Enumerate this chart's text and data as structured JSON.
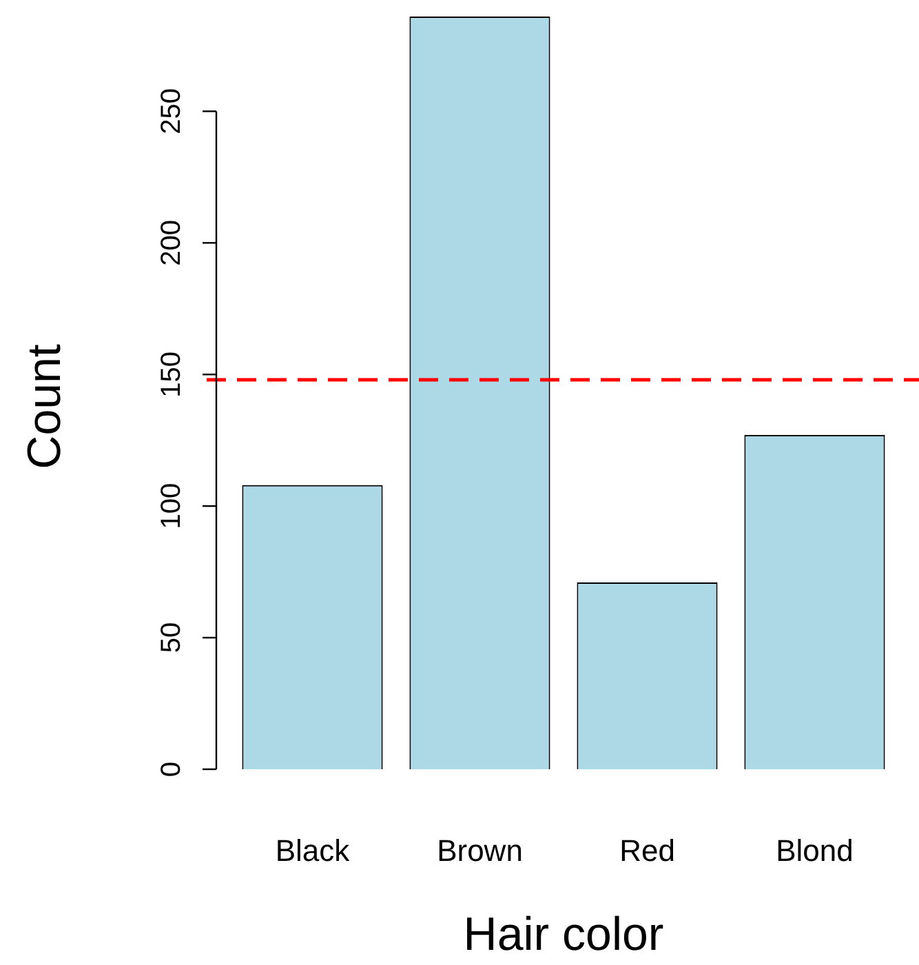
{
  "chart_data": {
    "type": "bar",
    "xlabel": "Hair color",
    "ylabel": "Count",
    "categories": [
      "Black",
      "Brown",
      "Red",
      "Blond"
    ],
    "values": [
      108,
      286,
      71,
      127
    ],
    "color": "#add8e6",
    "ylim": [
      0,
      286
    ],
    "yticks": [
      0,
      50,
      100,
      150,
      200,
      250
    ],
    "grid": false,
    "legend": false,
    "ref_lines": [
      {
        "axis": "y",
        "value": 148,
        "color": "#ff0000",
        "line_style": "dashed"
      }
    ]
  }
}
